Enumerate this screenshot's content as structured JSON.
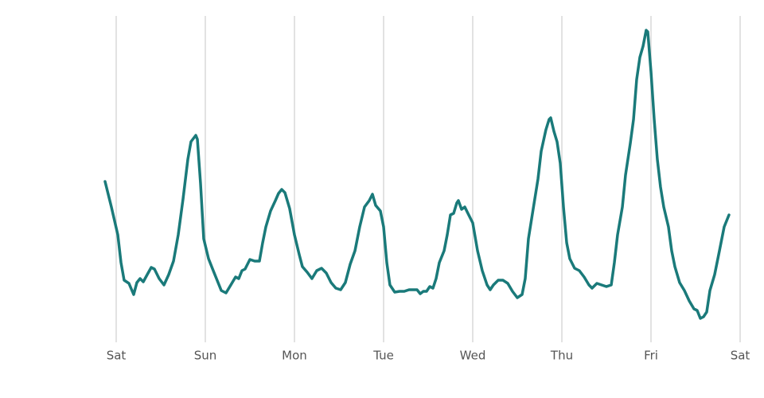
{
  "chart_data": {
    "type": "line",
    "x": [
      -0.125,
      -0.054,
      0.018,
      0.054,
      0.089,
      0.143,
      0.196,
      0.232,
      0.268,
      0.304,
      0.348,
      0.393,
      0.429,
      0.482,
      0.536,
      0.589,
      0.643,
      0.696,
      0.75,
      0.804,
      0.839,
      0.893,
      0.911,
      0.946,
      0.982,
      1.036,
      1.089,
      1.125,
      1.179,
      1.232,
      1.286,
      1.339,
      1.375,
      1.411,
      1.446,
      1.5,
      1.554,
      1.607,
      1.643,
      1.679,
      1.732,
      1.786,
      1.821,
      1.857,
      1.893,
      1.946,
      2,
      2.054,
      2.089,
      2.143,
      2.196,
      2.25,
      2.304,
      2.357,
      2.411,
      2.464,
      2.518,
      2.571,
      2.625,
      2.679,
      2.732,
      2.786,
      2.839,
      2.875,
      2.911,
      2.964,
      3,
      3.036,
      3.071,
      3.125,
      3.179,
      3.232,
      3.286,
      3.339,
      3.375,
      3.411,
      3.446,
      3.482,
      3.518,
      3.554,
      3.589,
      3.625,
      3.679,
      3.714,
      3.75,
      3.786,
      3.821,
      3.839,
      3.875,
      3.911,
      3.946,
      4,
      4.054,
      4.107,
      4.161,
      4.196,
      4.232,
      4.286,
      4.339,
      4.393,
      4.446,
      4.5,
      4.554,
      4.589,
      4.625,
      4.679,
      4.732,
      4.768,
      4.821,
      4.857,
      4.875,
      4.911,
      4.946,
      4.982,
      5.018,
      5.054,
      5.089,
      5.143,
      5.196,
      5.25,
      5.304,
      5.339,
      5.393,
      5.446,
      5.5,
      5.554,
      5.589,
      5.625,
      5.679,
      5.714,
      5.768,
      5.804,
      5.839,
      5.875,
      5.911,
      5.946,
      5.964,
      6,
      6.036,
      6.071,
      6.107,
      6.143,
      6.196,
      6.232,
      6.268,
      6.321,
      6.375,
      6.429,
      6.482,
      6.518,
      6.554,
      6.589,
      6.625,
      6.661,
      6.714,
      6.768,
      6.821,
      6.875
    ],
    "series": [
      {
        "color": "#1a7a7a",
        "values": [
          50.5,
          42.5,
          33.75,
          25,
          19.5,
          18.5,
          15,
          18.75,
          20,
          19,
          21.25,
          23.5,
          23,
          20,
          18,
          21.25,
          25.5,
          33.75,
          45,
          57.5,
          63,
          65,
          63.75,
          50,
          32.5,
          26.25,
          22.5,
          20,
          16.25,
          15.5,
          18,
          20.5,
          20,
          22.5,
          23,
          26,
          25.5,
          25.5,
          31.25,
          36.25,
          41.25,
          44.5,
          46.75,
          48,
          47,
          42,
          33.75,
          27.5,
          23.75,
          22,
          20,
          22.5,
          23.25,
          21.75,
          18.75,
          17,
          16.5,
          18.75,
          24.5,
          28.75,
          36.25,
          42.5,
          44.5,
          46.5,
          43,
          41.25,
          36.25,
          25,
          18,
          15.75,
          16,
          16,
          16.5,
          16.5,
          16.5,
          15.25,
          16,
          16,
          17.5,
          17,
          20,
          25,
          28.75,
          33.75,
          40,
          40.5,
          43.75,
          44.5,
          41.75,
          42.5,
          40.5,
          37.5,
          28.75,
          22.5,
          18,
          16.5,
          18,
          19.5,
          19.5,
          18.5,
          16,
          14,
          15,
          20,
          32.5,
          42,
          51.25,
          60,
          66.75,
          70,
          70.5,
          66.25,
          63,
          56.25,
          42.5,
          31.25,
          26.25,
          23.25,
          22.5,
          20.5,
          18,
          17,
          18.5,
          18,
          17.5,
          18,
          25,
          33.75,
          42.5,
          52.5,
          62.5,
          70,
          82.5,
          89.5,
          93,
          98,
          97.5,
          85,
          70,
          57.5,
          48.75,
          42.5,
          36.25,
          28.75,
          23.75,
          18.75,
          16.25,
          13,
          10.5,
          10,
          7.5,
          8,
          9.5,
          16.25,
          21.25,
          28.75,
          36.25,
          40
        ]
      }
    ],
    "xlim": [
      -0.125,
      7
    ],
    "xticks": [
      {
        "value": 0,
        "label": "Sat"
      },
      {
        "value": 1,
        "label": "Sun"
      },
      {
        "value": 2,
        "label": "Mon"
      },
      {
        "value": 3,
        "label": "Tue"
      },
      {
        "value": 4,
        "label": "Wed"
      },
      {
        "value": 5,
        "label": "Thu"
      },
      {
        "value": 6,
        "label": "Fri"
      },
      {
        "value": 7,
        "label": "Sat"
      }
    ],
    "ylim": [
      0,
      102.5
    ],
    "grid": true
  }
}
